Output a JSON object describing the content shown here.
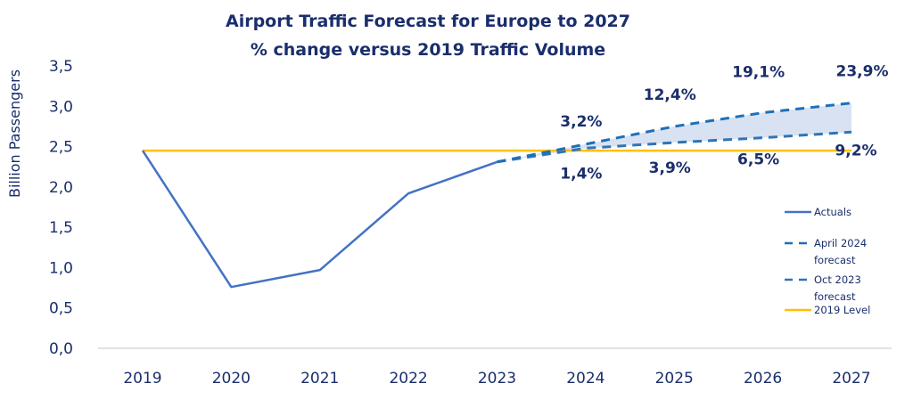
{
  "chart_data": {
    "type": "line",
    "title": "Airport Traffic Forecast for Europe to 2027",
    "subtitle": "% change versus 2019 Traffic Volume",
    "xlabel": "",
    "ylabel": "Billion Passengers",
    "ylim": [
      0,
      3.5
    ],
    "yticks": [
      0,
      0.5,
      1.0,
      1.5,
      2.0,
      2.5,
      3.0,
      3.5
    ],
    "ytick_labels": [
      "0,0",
      "0,5",
      "1,0",
      "1,5",
      "2,0",
      "2,5",
      "3,0",
      "3,5"
    ],
    "categories": [
      "2019",
      "2020",
      "2021",
      "2022",
      "2023",
      "2024",
      "2025",
      "2026",
      "2027"
    ],
    "grid": false,
    "legend_position": "right",
    "series": [
      {
        "name": "Actuals",
        "style": "solid",
        "color": "#4472c4",
        "values": [
          2.45,
          0.76,
          0.97,
          1.92,
          2.31,
          null,
          null,
          null,
          null
        ]
      },
      {
        "name": "April 2024 forecast",
        "style": "dashed",
        "color": "#1f6fb8",
        "values": [
          null,
          null,
          null,
          null,
          2.31,
          2.53,
          2.75,
          2.92,
          3.04
        ],
        "labels": [
          null,
          null,
          null,
          null,
          null,
          "3,2%",
          "12,4%",
          "19,1%",
          "23,9%"
        ]
      },
      {
        "name": "Oct 2023 forecast",
        "style": "dashed",
        "color": "#2e75b6",
        "values": [
          null,
          null,
          null,
          null,
          2.31,
          2.48,
          2.55,
          2.61,
          2.68
        ],
        "labels": [
          null,
          null,
          null,
          null,
          null,
          "1,4%",
          "3,9%",
          "6,5%",
          "9,2%"
        ]
      },
      {
        "name": "2019 Level",
        "style": "solid",
        "color": "#ffc000",
        "values": [
          2.45,
          2.45,
          2.45,
          2.45,
          2.45,
          2.45,
          2.45,
          2.45,
          2.45
        ]
      }
    ],
    "band": {
      "between": [
        "Oct 2023 forecast",
        "April 2024 forecast"
      ],
      "from": "2023",
      "to": "2027",
      "color": "#d9e2f3"
    }
  },
  "legend": [
    {
      "label_lines": [
        "Actuals"
      ],
      "style": "solid",
      "color": "#4472c4"
    },
    {
      "label_lines": [
        "April 2024",
        "forecast"
      ],
      "style": "dashed",
      "color": "#1f6fb8"
    },
    {
      "label_lines": [
        "Oct 2023",
        "forecast"
      ],
      "style": "dashed",
      "color": "#2e75b6"
    },
    {
      "label_lines": [
        "2019 Level"
      ],
      "style": "solid",
      "color": "#ffc000"
    }
  ],
  "colors": {
    "text": "#1a2e6c",
    "axis": "#d9d9d9"
  }
}
